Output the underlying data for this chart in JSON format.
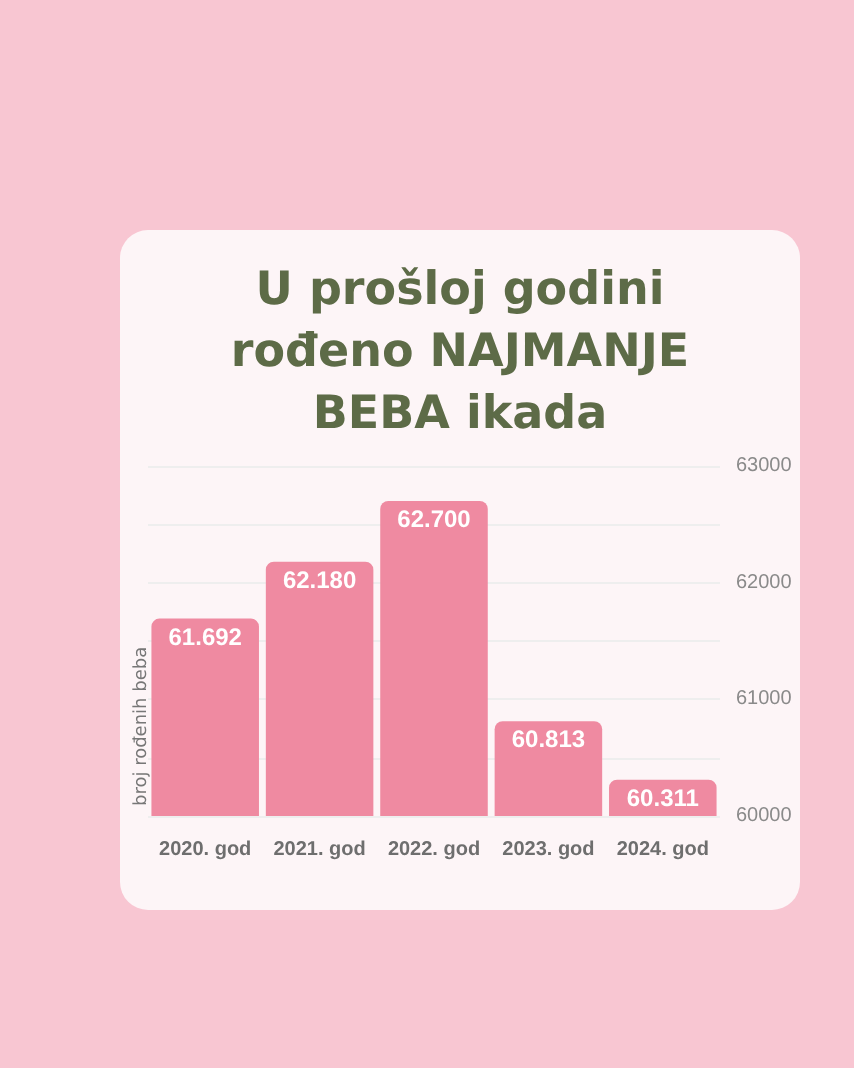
{
  "chart_data": {
    "type": "bar",
    "title": "U prošloj godini rođeno NAJMANJE BEBA ikada",
    "ylabel": "broj rođenih beba",
    "categories": [
      "2020. god",
      "2021. god",
      "2022. god",
      "2023. god",
      "2024. god"
    ],
    "values": [
      61692,
      62180,
      62700,
      60813,
      60311
    ],
    "value_labels": [
      "61.692",
      "62.180",
      "62.700",
      "60.813",
      "60.311"
    ],
    "color": "#ef8aa1",
    "ylim": [
      60000,
      63000
    ],
    "yticks": [
      60000,
      {
        "value": 60500,
        "label": null
      },
      61000,
      {
        "value": 61500,
        "label": null
      },
      62000,
      {
        "value": 62500,
        "label": null
      },
      63000
    ],
    "grid": "y"
  }
}
